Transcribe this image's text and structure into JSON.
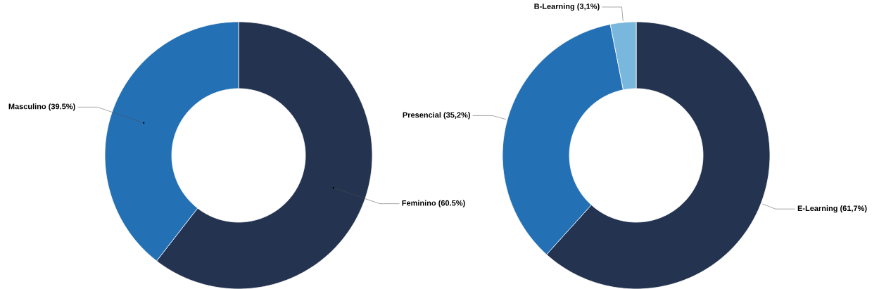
{
  "chart_data": [
    {
      "type": "donut",
      "categories": [
        "Feminino",
        "Masculino"
      ],
      "values": [
        60.5,
        39.5
      ],
      "colors": [
        "#243450",
        "#2470b5"
      ],
      "value_labels": [
        "(60.5%)",
        "(39.5%)"
      ]
    },
    {
      "type": "donut",
      "categories": [
        "E-Learning",
        "Presencial",
        "B-Learning"
      ],
      "values": [
        61.7,
        35.2,
        3.1
      ],
      "colors": [
        "#243450",
        "#2470b5",
        "#7ab7dc"
      ],
      "value_labels": [
        "(61,7%)",
        "(35,2%)",
        "(3,1%)"
      ]
    }
  ]
}
